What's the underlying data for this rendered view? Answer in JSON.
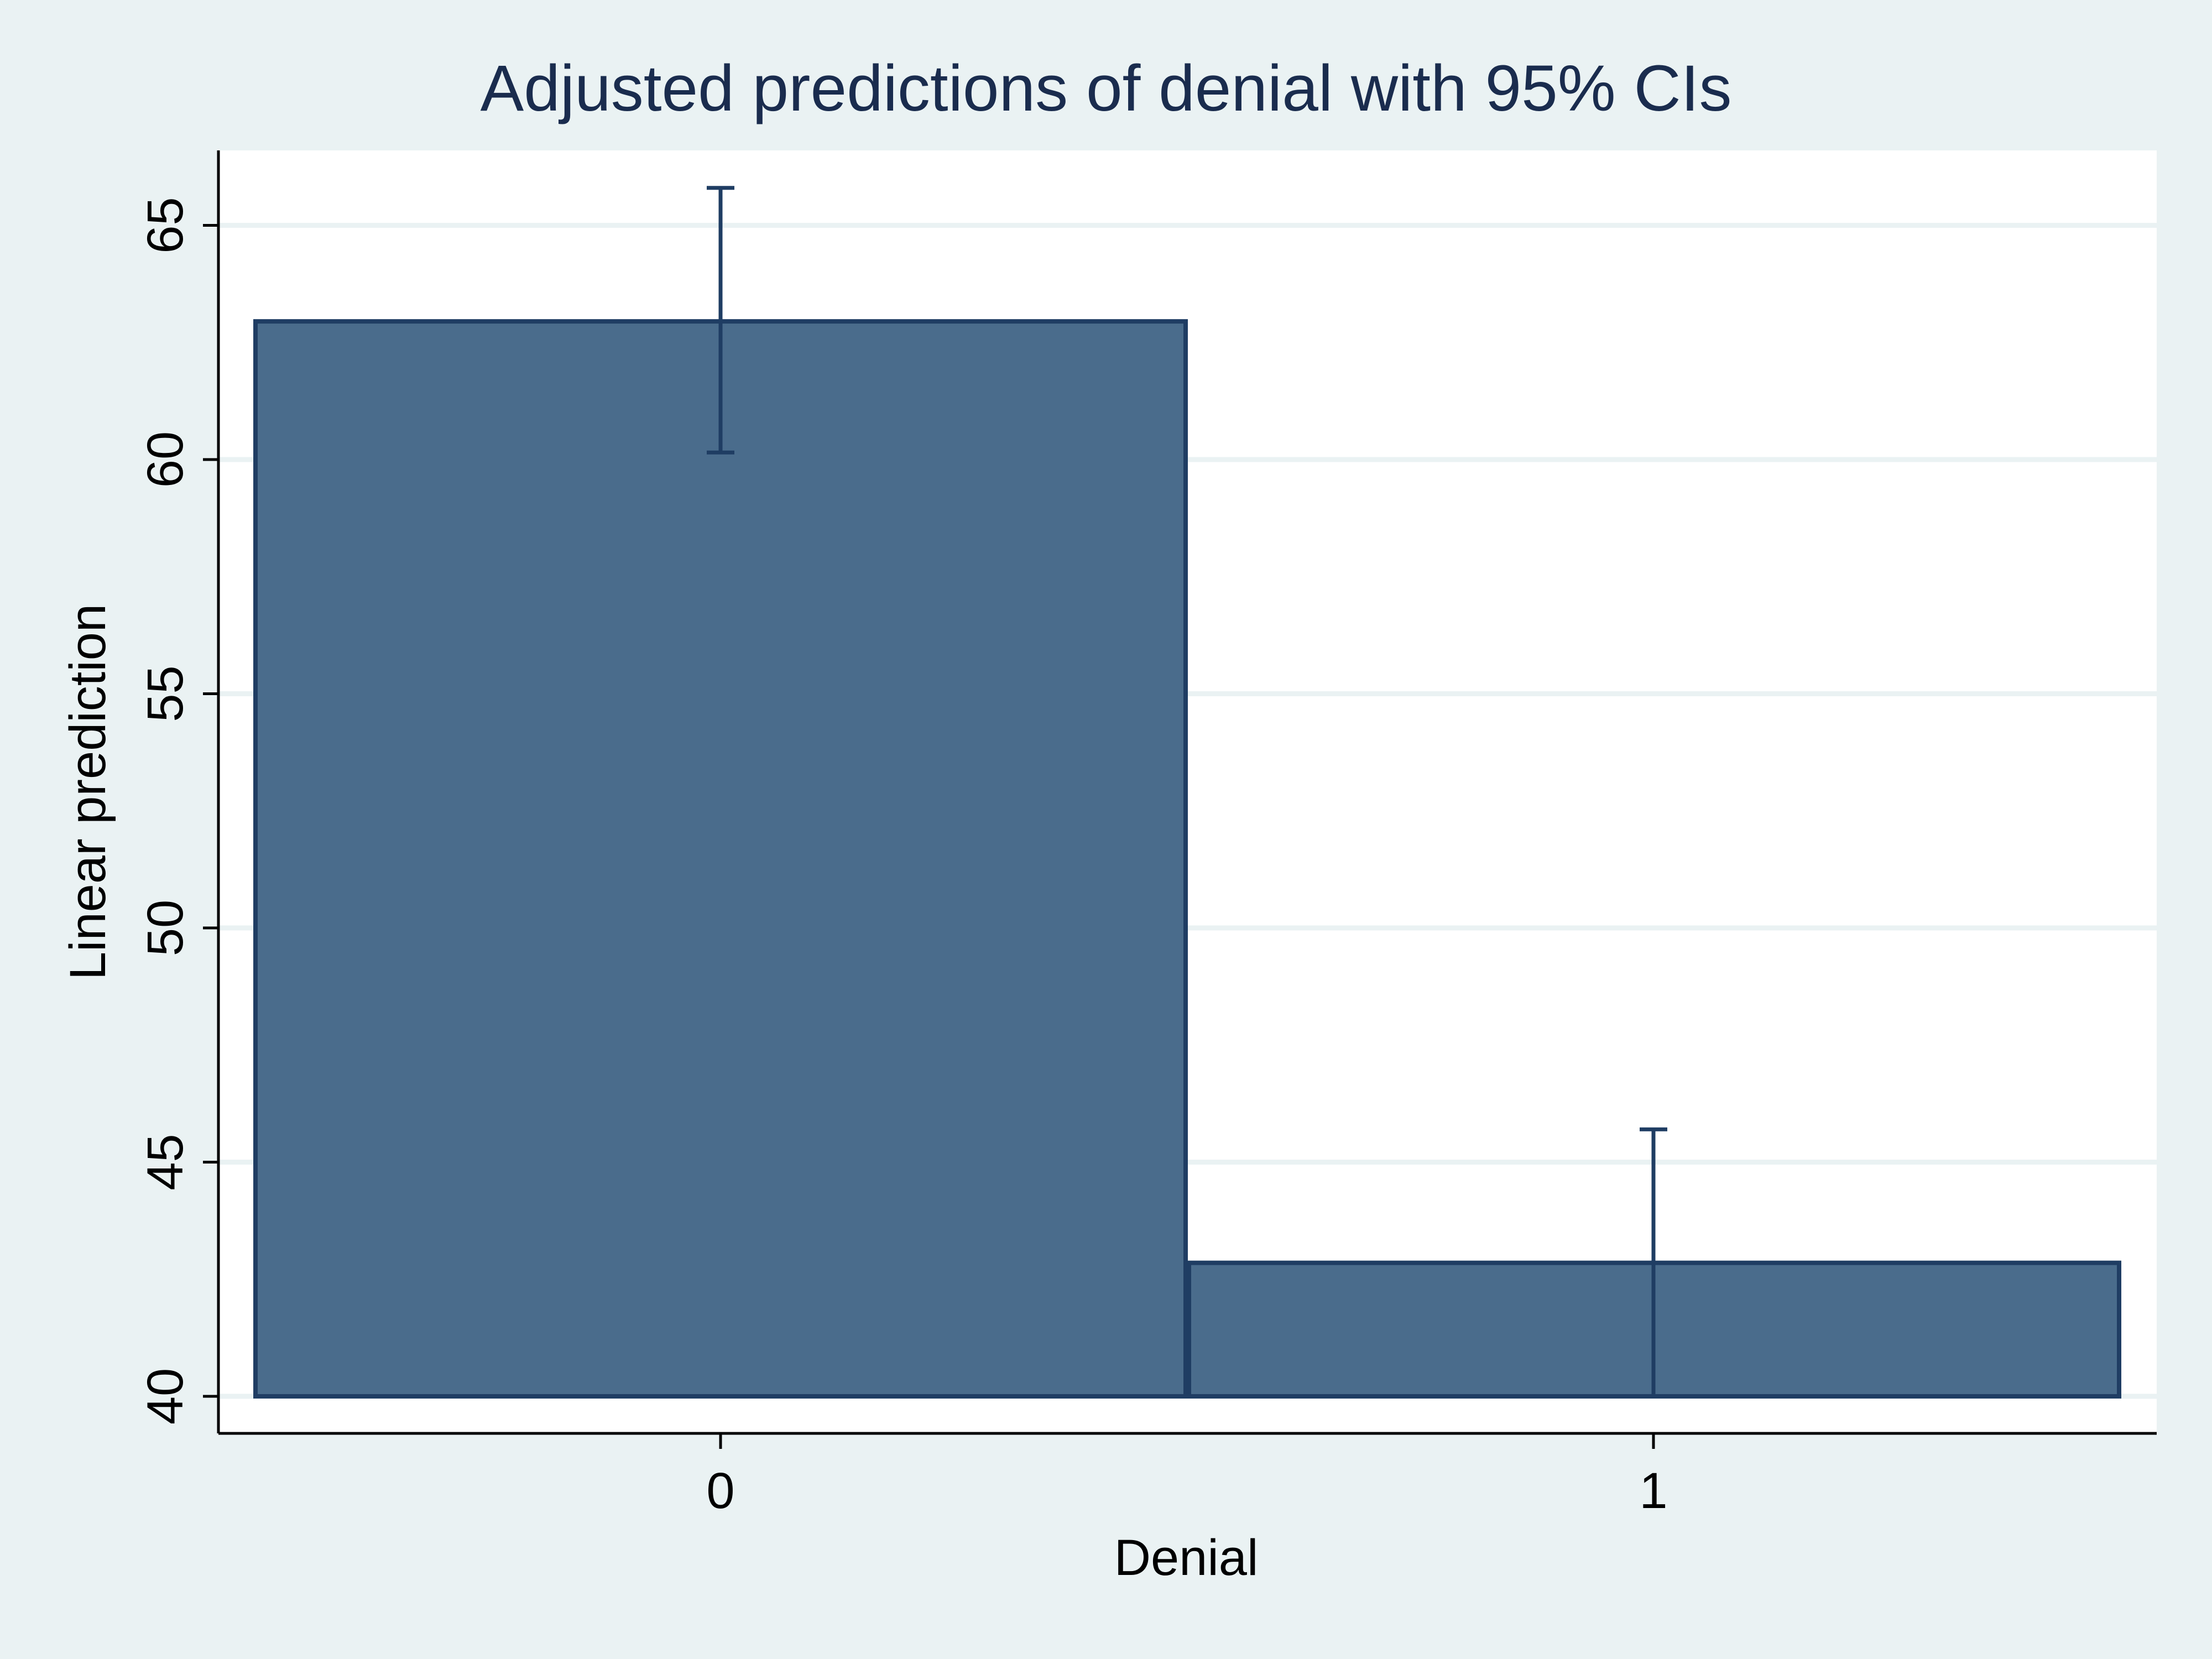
{
  "colors": {
    "background": "#eaf2f3",
    "plot_background": "#ffffff",
    "bar_fill": "#4a6c8c",
    "bar_stroke": "#1f3d63",
    "errorbar": "#1f3d63",
    "gridline": "#eaf2f3",
    "title": "#1a2c4e"
  },
  "chart_data": {
    "type": "bar",
    "title": "Adjusted predictions of denial with 95% CIs",
    "xlabel": "Denial",
    "ylabel": "Linear prediction",
    "categories": [
      "0",
      "1"
    ],
    "series": [
      {
        "values": [
          62.95,
          42.85
        ],
        "ci_lower": [
          60.15,
          40.0
        ],
        "ci_upper": [
          65.8,
          45.7
        ]
      }
    ],
    "ylim": [
      40,
      66.6
    ],
    "yticks": [
      40,
      45,
      50,
      55,
      60,
      65
    ],
    "grid": true,
    "legend": "none"
  }
}
